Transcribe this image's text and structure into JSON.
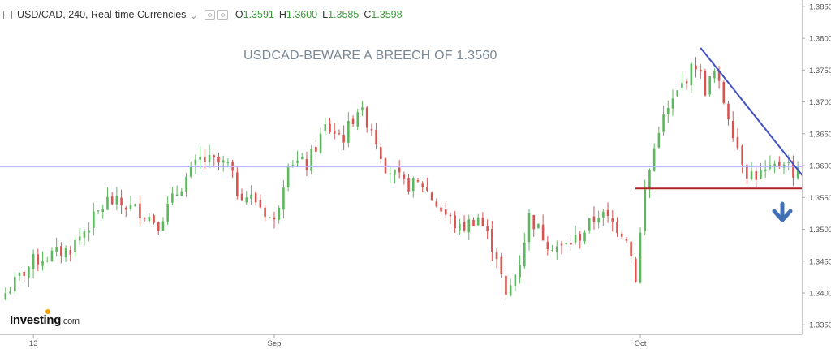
{
  "header": {
    "symbol": "USD/CAD, 240, Real-time Currencies",
    "open_label": "O",
    "open": "1.3591",
    "high_label": "H",
    "high": "1.3600",
    "low_label": "L",
    "low": "1.3585",
    "close_label": "C",
    "close": "1.3598"
  },
  "brand": {
    "name": "Investing",
    "suffix": ".com"
  },
  "chart_data": {
    "type": "candlestick",
    "title": "USDCAD-BEWARE A BREECH OF 1.3560",
    "ylim": [
      1.3335,
      1.386
    ],
    "y_ticks": [
      "1.3850",
      "1.3800",
      "1.3750",
      "1.3700",
      "1.3650",
      "1.3600",
      "1.3550",
      "1.3500",
      "1.3450",
      "1.3400",
      "1.3350"
    ],
    "x_ticks": [
      {
        "label": "13",
        "bar": 6
      },
      {
        "label": "Sep",
        "bar": 58
      },
      {
        "label": "Oct",
        "bar": 137
      }
    ],
    "current_price": "1.3598",
    "support_level": "1.3564",
    "colors": {
      "up": "#5cb85c",
      "down": "#d9534f",
      "price_line": "#b3b3ff",
      "trendline": "#3f51c6",
      "support": "#b22222",
      "arrow": "#3f6fb4"
    },
    "trendline": {
      "from": {
        "bar": 150,
        "price": 1.3785
      },
      "to": {
        "bar": 171,
        "price": 1.3585
      }
    },
    "support_line": {
      "from_bar": 137,
      "price": 1.3564
    },
    "anchors": [
      [
        0,
        1.34
      ],
      [
        6,
        1.345
      ],
      [
        14,
        1.347
      ],
      [
        22,
        1.3545
      ],
      [
        29,
        1.353
      ],
      [
        33,
        1.351
      ],
      [
        38,
        1.357
      ],
      [
        42,
        1.361
      ],
      [
        48,
        1.36
      ],
      [
        50,
        1.356
      ],
      [
        54,
        1.3545
      ],
      [
        58,
        1.351
      ],
      [
        61,
        1.361
      ],
      [
        65,
        1.36
      ],
      [
        69,
        1.366
      ],
      [
        73,
        1.3645
      ],
      [
        76,
        1.369
      ],
      [
        79,
        1.366
      ],
      [
        82,
        1.36
      ],
      [
        86,
        1.357
      ],
      [
        90,
        1.357
      ],
      [
        94,
        1.353
      ],
      [
        98,
        1.35
      ],
      [
        102,
        1.352
      ],
      [
        106,
        1.346
      ],
      [
        108,
        1.339
      ],
      [
        111,
        1.345
      ],
      [
        113,
        1.352
      ],
      [
        117,
        1.348
      ],
      [
        120,
        1.347
      ],
      [
        124,
        1.349
      ],
      [
        128,
        1.3525
      ],
      [
        131,
        1.351
      ],
      [
        134,
        1.349
      ],
      [
        136,
        1.3425
      ],
      [
        138,
        1.356
      ],
      [
        141,
        1.366
      ],
      [
        144,
        1.37
      ],
      [
        147,
        1.374
      ],
      [
        149,
        1.376
      ],
      [
        151,
        1.372
      ],
      [
        153,
        1.3745
      ],
      [
        156,
        1.368
      ],
      [
        158,
        1.363
      ],
      [
        160,
        1.359
      ],
      [
        162,
        1.3585
      ],
      [
        165,
        1.359
      ],
      [
        168,
        1.361
      ],
      [
        170,
        1.359
      ],
      [
        171,
        1.3598
      ]
    ]
  }
}
